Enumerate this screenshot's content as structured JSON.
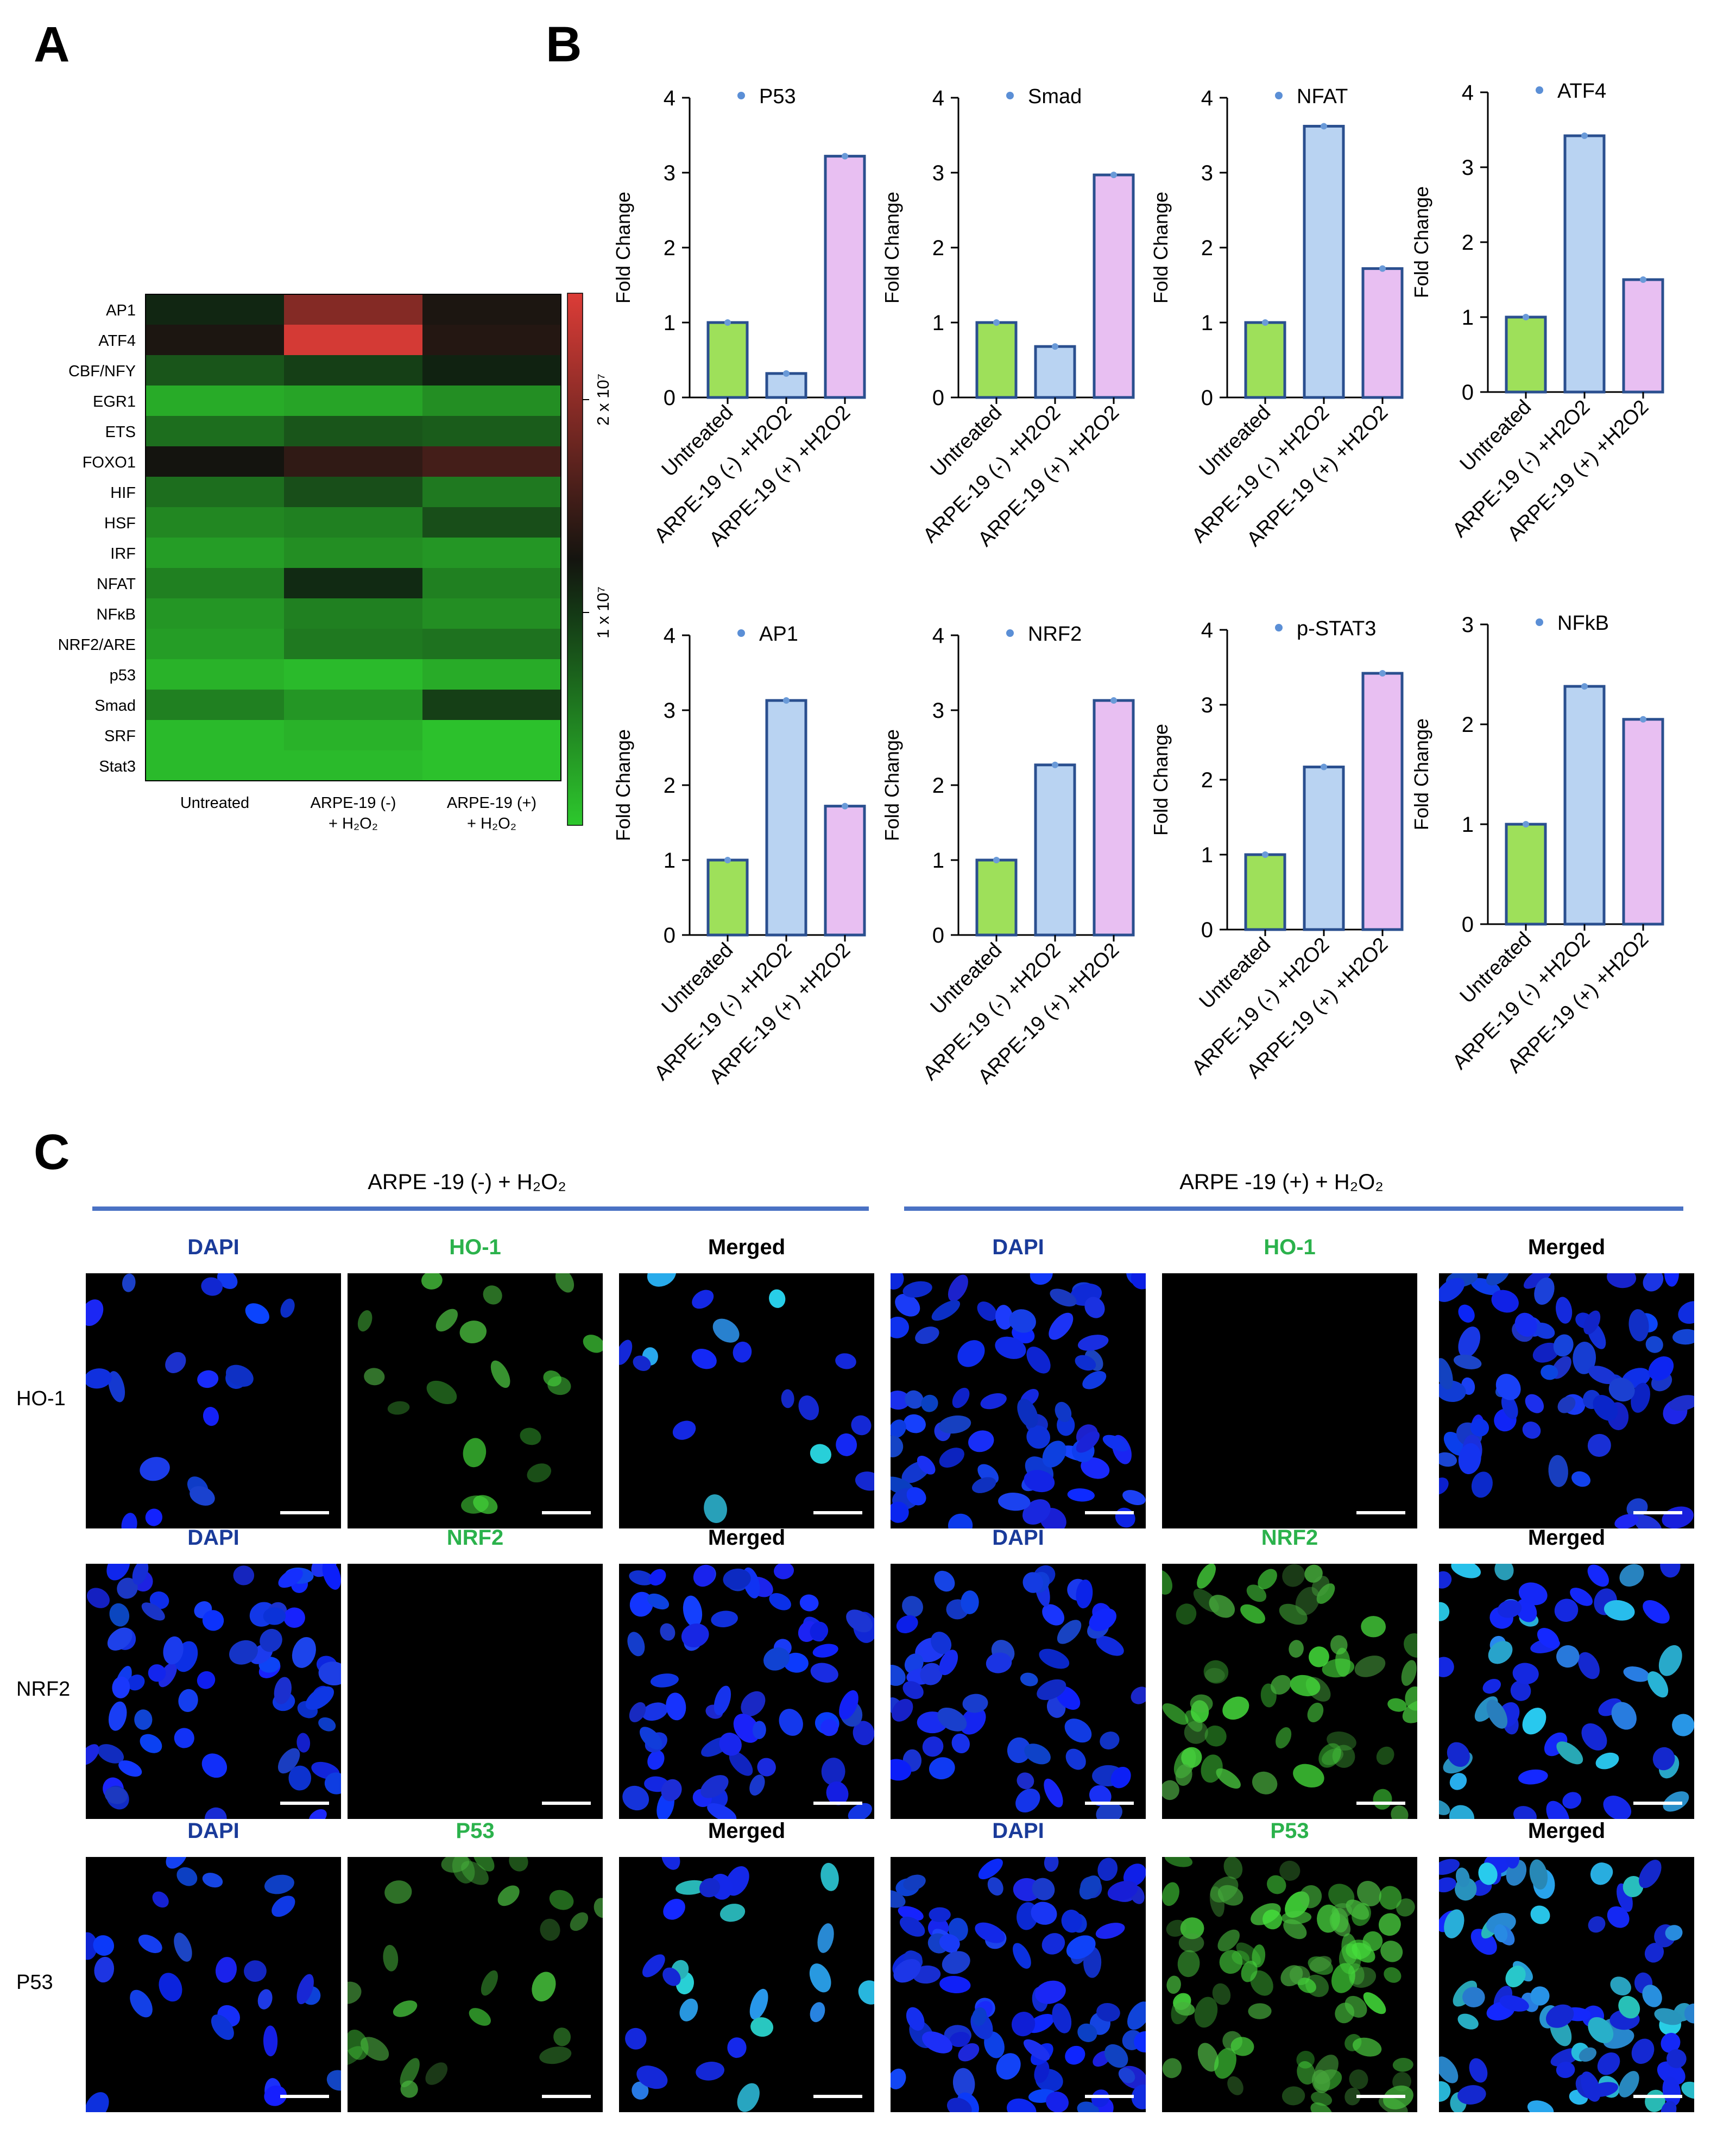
{
  "panels": {
    "a": "A",
    "b": "B",
    "c": "C"
  },
  "colors": {
    "green_bar": "#9ee05a",
    "blue_bar": "#b9d3f2",
    "pink_bar": "#e8bff2",
    "bar_edge": "#2a4f8f",
    "dapi": "#1a3b9a",
    "green_label": "#2bb24c",
    "header_line": "#4a72c4"
  },
  "heatmap": {
    "rows": [
      "AP1",
      "ATF4",
      "CBF/NFY",
      "EGR1",
      "ETS",
      "FOXO1",
      "HIF",
      "HSF",
      "IRF",
      "NFAT",
      "NFκB",
      "NRF2/ARE",
      "p53",
      "Smad",
      "SRF",
      "Stat3"
    ],
    "columns": [
      {
        "line1": "Untreated",
        "line2": ""
      },
      {
        "line1": "ARPE-19 (-)",
        "line2": "+ H₂O₂"
      },
      {
        "line1": "ARPE-19 (+)",
        "line2": "+ H₂O₂"
      }
    ],
    "colorbar_labels": [
      "2 x 10⁷",
      "1 x 10⁷"
    ],
    "colorbar_values": [
      20000000.0,
      10000000.0
    ],
    "values": [
      [
        0.45,
        0.78,
        0.52
      ],
      [
        0.52,
        0.98,
        0.54
      ],
      [
        0.32,
        0.38,
        0.46
      ],
      [
        0.08,
        0.1,
        0.16
      ],
      [
        0.25,
        0.32,
        0.3
      ],
      [
        0.5,
        0.57,
        0.62
      ],
      [
        0.25,
        0.34,
        0.22
      ],
      [
        0.18,
        0.2,
        0.34
      ],
      [
        0.12,
        0.16,
        0.14
      ],
      [
        0.2,
        0.44,
        0.2
      ],
      [
        0.14,
        0.2,
        0.16
      ],
      [
        0.12,
        0.22,
        0.24
      ],
      [
        0.06,
        0.04,
        0.08
      ],
      [
        0.2,
        0.14,
        0.38
      ],
      [
        0.04,
        0.06,
        0.02
      ],
      [
        0.04,
        0.04,
        0.02
      ]
    ]
  },
  "chart_data": [
    {
      "type": "bar",
      "title": "P53",
      "ylabel": "Fold Change",
      "ylim": [
        0,
        4
      ],
      "yticks": [
        0,
        1,
        2,
        3,
        4
      ],
      "categories": [
        "Untreated",
        "ARPE-19 (-) +H2O2",
        "ARPE-19 (+) +H2O2"
      ],
      "values": [
        1.0,
        0.32,
        3.22
      ]
    },
    {
      "type": "bar",
      "title": "Smad",
      "ylabel": "Fold Change",
      "ylim": [
        0,
        4
      ],
      "yticks": [
        0,
        1,
        2,
        3,
        4
      ],
      "categories": [
        "Untreated",
        "ARPE-19 (-) +H2O2",
        "ARPE-19 (+) +H2O2"
      ],
      "values": [
        1.0,
        0.68,
        2.97
      ]
    },
    {
      "type": "bar",
      "title": "NFAT",
      "ylabel": "Fold Change",
      "ylim": [
        0,
        4
      ],
      "yticks": [
        0,
        1,
        2,
        3,
        4
      ],
      "categories": [
        "Untreated",
        "ARPE-19 (-) +H2O2",
        "ARPE-19 (+) +H2O2"
      ],
      "values": [
        1.0,
        3.62,
        1.72
      ]
    },
    {
      "type": "bar",
      "title": "ATF4",
      "ylabel": "Fold Change",
      "ylim": [
        0,
        4
      ],
      "yticks": [
        0,
        1,
        2,
        3,
        4
      ],
      "categories": [
        "Untreated",
        "ARPE-19 (-) +H2O2",
        "ARPE-19 (+) +H2O2"
      ],
      "values": [
        1.0,
        3.42,
        1.5
      ]
    },
    {
      "type": "bar",
      "title": "AP1",
      "ylabel": "Fold Change",
      "ylim": [
        0,
        4
      ],
      "yticks": [
        0,
        1,
        2,
        3,
        4
      ],
      "categories": [
        "Untreated",
        "ARPE-19 (-) +H2O2",
        "ARPE-19 (+) +H2O2"
      ],
      "values": [
        1.0,
        3.13,
        1.72
      ]
    },
    {
      "type": "bar",
      "title": "NRF2",
      "ylabel": "Fold Change",
      "ylim": [
        0,
        4
      ],
      "yticks": [
        0,
        1,
        2,
        3,
        4
      ],
      "categories": [
        "Untreated",
        "ARPE-19 (-) +H2O2",
        "ARPE-19 (+) +H2O2"
      ],
      "values": [
        1.0,
        2.27,
        3.13
      ]
    },
    {
      "type": "bar",
      "title": "p-STAT3",
      "ylabel": "Fold Change",
      "ylim": [
        0,
        4
      ],
      "yticks": [
        0,
        1,
        2,
        3,
        4
      ],
      "categories": [
        "Untreated",
        "ARPE-19 (-) +H2O2",
        "ARPE-19 (+) +H2O2"
      ],
      "values": [
        1.0,
        2.17,
        3.42
      ]
    },
    {
      "type": "bar",
      "title": "NFkB",
      "ylabel": "Fold Change",
      "ylim": [
        0,
        3
      ],
      "yticks": [
        0,
        1,
        2,
        3
      ],
      "categories": [
        "Untreated",
        "ARPE-19 (-) +H2O2",
        "ARPE-19 (+) +H2O2"
      ],
      "values": [
        1.0,
        2.38,
        2.05
      ]
    }
  ],
  "panel_c": {
    "headers": [
      "ARPE -19 (-) + H₂O₂",
      "ARPE -19 (+) + H₂O₂"
    ],
    "rows": [
      {
        "label": "HO-1",
        "channels": [
          "DAPI",
          "HO-1",
          "Merged",
          "DAPI",
          "HO-1",
          "Merged"
        ]
      },
      {
        "label": "NRF2",
        "channels": [
          "DAPI",
          "NRF2",
          "Merged",
          "DAPI",
          "NRF2",
          "Merged"
        ]
      },
      {
        "label": "P53",
        "channels": [
          "DAPI",
          "P53",
          "Merged",
          "DAPI",
          "P53",
          "Merged"
        ]
      }
    ]
  }
}
